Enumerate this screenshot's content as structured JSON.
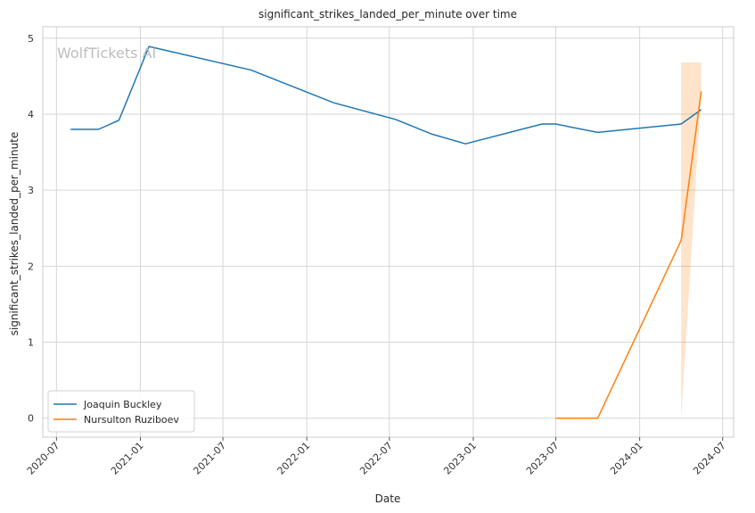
{
  "chart_data": {
    "type": "line",
    "title": "significant_strikes_landed_per_minute over time",
    "xlabel": "Date",
    "ylabel": "significant_strikes_landed_per_minute",
    "x_ticks": [
      "2020-07",
      "2021-01",
      "2021-07",
      "2022-01",
      "2022-07",
      "2023-01",
      "2023-07",
      "2024-01",
      "2024-07"
    ],
    "y_ticks": [
      "0",
      "1",
      "2",
      "3",
      "4",
      "5"
    ],
    "xlim": [
      "2020-06-01",
      "2024-07-25"
    ],
    "ylim": [
      -0.25,
      5.15
    ],
    "grid": true,
    "legend_position": "lower-left",
    "watermark": "WolfTickets AI",
    "series": [
      {
        "name": "Joaquin Buckley",
        "color": "#1f77b4",
        "points": [
          {
            "x": "2020-08-01",
            "y": 3.8
          },
          {
            "x": "2020-10-01",
            "y": 3.8
          },
          {
            "x": "2020-11-15",
            "y": 3.92
          },
          {
            "x": "2021-01-20",
            "y": 4.89
          },
          {
            "x": "2021-09-01",
            "y": 4.58
          },
          {
            "x": "2022-03-01",
            "y": 4.15
          },
          {
            "x": "2022-07-15",
            "y": 3.93
          },
          {
            "x": "2022-10-01",
            "y": 3.74
          },
          {
            "x": "2022-12-15",
            "y": 3.61
          },
          {
            "x": "2023-06-01",
            "y": 3.87
          },
          {
            "x": "2023-07-01",
            "y": 3.87
          },
          {
            "x": "2023-10-01",
            "y": 3.76
          },
          {
            "x": "2024-04-01",
            "y": 3.87
          },
          {
            "x": "2024-05-15",
            "y": 4.06
          }
        ]
      },
      {
        "name": "Nursulton Ruziboev",
        "color": "#ff7f0e",
        "points": [
          {
            "x": "2023-07-01",
            "y": 0.0
          },
          {
            "x": "2023-10-01",
            "y": 0.0
          },
          {
            "x": "2024-04-01",
            "y": 2.34
          },
          {
            "x": "2024-05-15",
            "y": 4.3
          }
        ],
        "confidence_band": [
          {
            "x": "2024-04-01",
            "low": 0.0,
            "high": 4.68
          },
          {
            "x": "2024-05-15",
            "low": 4.3,
            "high": 4.68
          }
        ]
      }
    ]
  }
}
